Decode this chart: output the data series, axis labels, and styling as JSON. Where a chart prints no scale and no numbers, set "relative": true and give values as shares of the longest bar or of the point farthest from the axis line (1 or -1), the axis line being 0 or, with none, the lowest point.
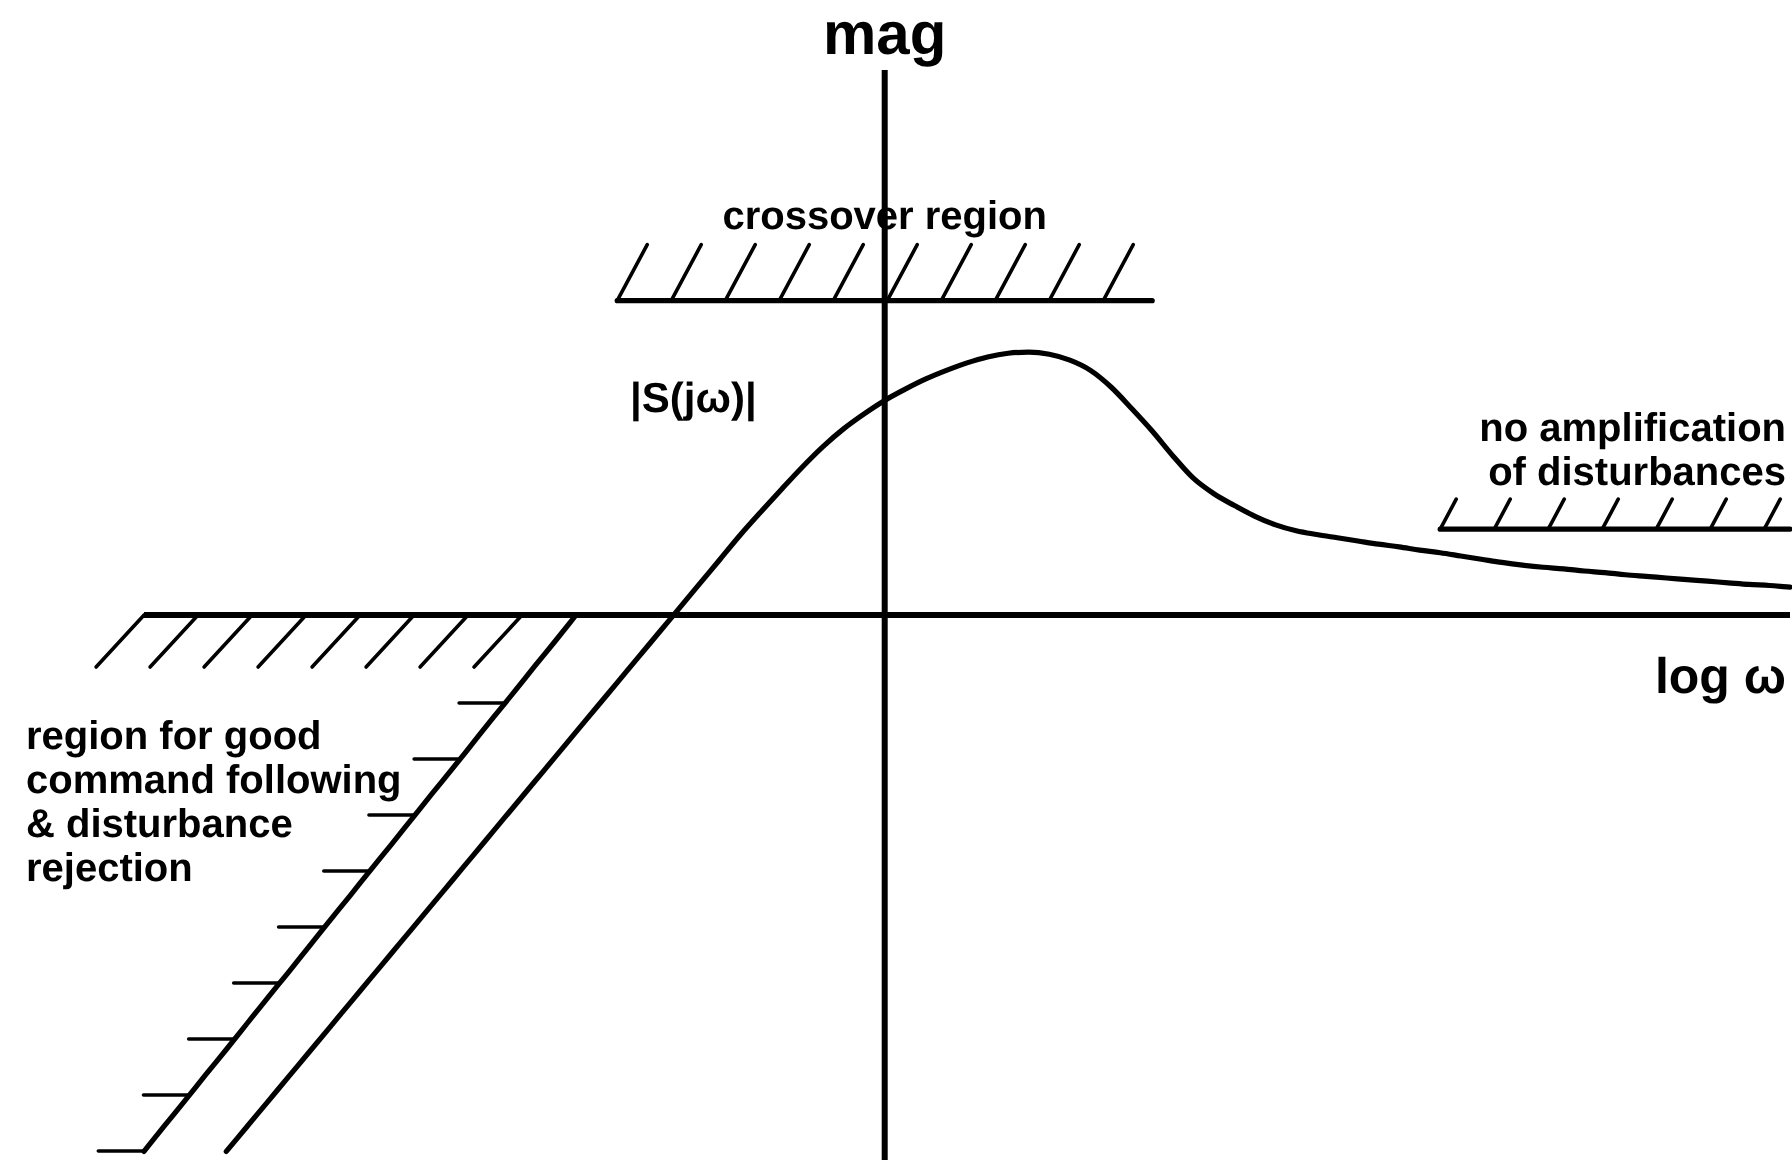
{
  "chart_data": {
    "type": "line",
    "relative": true,
    "xlabel": "log ω",
    "ylabel": "mag",
    "annotations": [
      "crossover region",
      "no amplification of disturbances",
      "region for good command following & disturbance rejection"
    ],
    "categories": [
      null,
      null,
      null,
      null,
      null,
      null,
      null,
      null,
      null,
      null,
      null,
      null,
      null,
      null,
      null,
      null,
      null,
      null,
      null,
      null,
      null,
      null,
      null,
      null,
      null,
      null,
      null,
      null,
      null,
      null,
      null,
      null,
      null,
      null,
      null,
      null,
      null,
      null,
      null,
      null,
      null,
      null,
      null,
      null,
      null,
      null,
      null,
      null,
      null,
      null,
      null,
      null,
      null,
      null,
      null,
      null,
      null,
      null,
      null,
      null,
      null,
      null,
      null,
      null,
      null,
      null,
      null,
      null,
      null,
      null,
      null,
      null,
      null,
      null,
      null,
      null,
      null,
      null,
      null,
      null,
      null
    ],
    "series": [
      {
        "name": "|S(jω)|",
        "color": "#000000",
        "values": [
          null,
          null,
          null,
          null,
          -1,
          -0.954,
          -0.908,
          -0.862,
          -0.816,
          -0.77,
          -0.724,
          -0.678,
          -0.632,
          -0.586,
          -0.54,
          -0.494,
          -0.448,
          -0.402,
          -0.356,
          -0.31,
          -0.264,
          -0.218,
          -0.172,
          -0.126,
          -0.08,
          -0.034,
          0.012,
          0.058,
          0.104,
          0.15,
          0.193,
          0.235,
          0.276,
          0.314,
          0.347,
          0.375,
          0.4,
          0.421,
          0.44,
          0.456,
          0.47,
          0.481,
          0.488,
          0.49,
          0.486,
          0.475,
          0.456,
          0.425,
          0.385,
          0.343,
          0.297,
          0.255,
          0.226,
          0.204,
          0.184,
          0.168,
          0.157,
          0.15,
          0.144,
          0.138,
          0.132,
          0.127,
          0.121,
          0.116,
          0.11,
          0.104,
          0.098,
          0.093,
          0.089,
          0.086,
          0.082,
          0.079,
          0.075,
          0.072,
          0.069,
          0.066,
          0.063,
          0.06,
          0.057,
          0.055,
          0.052
        ]
      },
      {
        "color": "#000000",
        "values": [
          -1,
          -0.952,
          -0.905,
          -0.857,
          -0.81,
          -0.762,
          -0.714,
          -0.667,
          -0.619,
          -0.571,
          -0.524,
          -0.476,
          -0.429,
          -0.381,
          -0.333,
          -0.286,
          -0.238,
          -0.19,
          -0.143,
          -0.095,
          -0.048,
          0,
          null,
          null,
          null,
          null,
          null,
          null,
          null,
          null,
          null,
          null,
          null,
          null,
          null,
          null,
          null,
          null,
          null,
          null,
          null,
          null,
          null,
          null,
          null,
          null,
          null,
          null,
          null,
          null,
          null,
          null,
          null,
          null,
          null,
          null,
          null,
          null,
          null,
          null,
          null,
          null,
          null,
          null,
          null,
          null,
          null,
          null,
          null,
          null,
          null,
          null,
          null,
          null,
          null,
          null,
          null,
          null,
          null,
          null,
          null
        ]
      },
      {
        "color": "#000000",
        "values": [
          null,
          null,
          null,
          null,
          null,
          null,
          null,
          null,
          null,
          null,
          null,
          null,
          null,
          null,
          null,
          null,
          null,
          null,
          null,
          null,
          null,
          null,
          null,
          0.586,
          0.586,
          0.586,
          0.586,
          0.586,
          0.586,
          0.586,
          0.586,
          0.586,
          0.586,
          0.586,
          0.586,
          0.586,
          0.586,
          0.586,
          0.586,
          0.586,
          0.586,
          0.586,
          0.586,
          0.586,
          0.586,
          0.586,
          0.586,
          0.586,
          0.586,
          0.586,
          null,
          null,
          null,
          null,
          null,
          null,
          null,
          null,
          null,
          null,
          null,
          null,
          null,
          null,
          null,
          null,
          null,
          null,
          null,
          null,
          null,
          null,
          null,
          null,
          null,
          null,
          null,
          null,
          null,
          null,
          null
        ]
      },
      {
        "color": "#000000",
        "values": [
          null,
          null,
          null,
          null,
          null,
          null,
          null,
          null,
          null,
          null,
          null,
          null,
          null,
          null,
          null,
          null,
          null,
          null,
          null,
          null,
          null,
          null,
          null,
          null,
          null,
          null,
          null,
          null,
          null,
          null,
          null,
          null,
          null,
          null,
          null,
          null,
          null,
          null,
          null,
          null,
          null,
          null,
          null,
          null,
          null,
          null,
          null,
          null,
          null,
          null,
          null,
          null,
          null,
          null,
          null,
          null,
          null,
          null,
          null,
          null,
          null,
          null,
          null,
          0.16,
          0.16,
          0.16,
          0.16,
          0.16,
          0.16,
          0.16,
          0.16,
          0.16,
          0.16,
          0.16,
          0.16,
          0.16,
          0.16,
          0.16,
          0.16,
          0.16,
          0.16
        ]
      }
    ]
  }
}
